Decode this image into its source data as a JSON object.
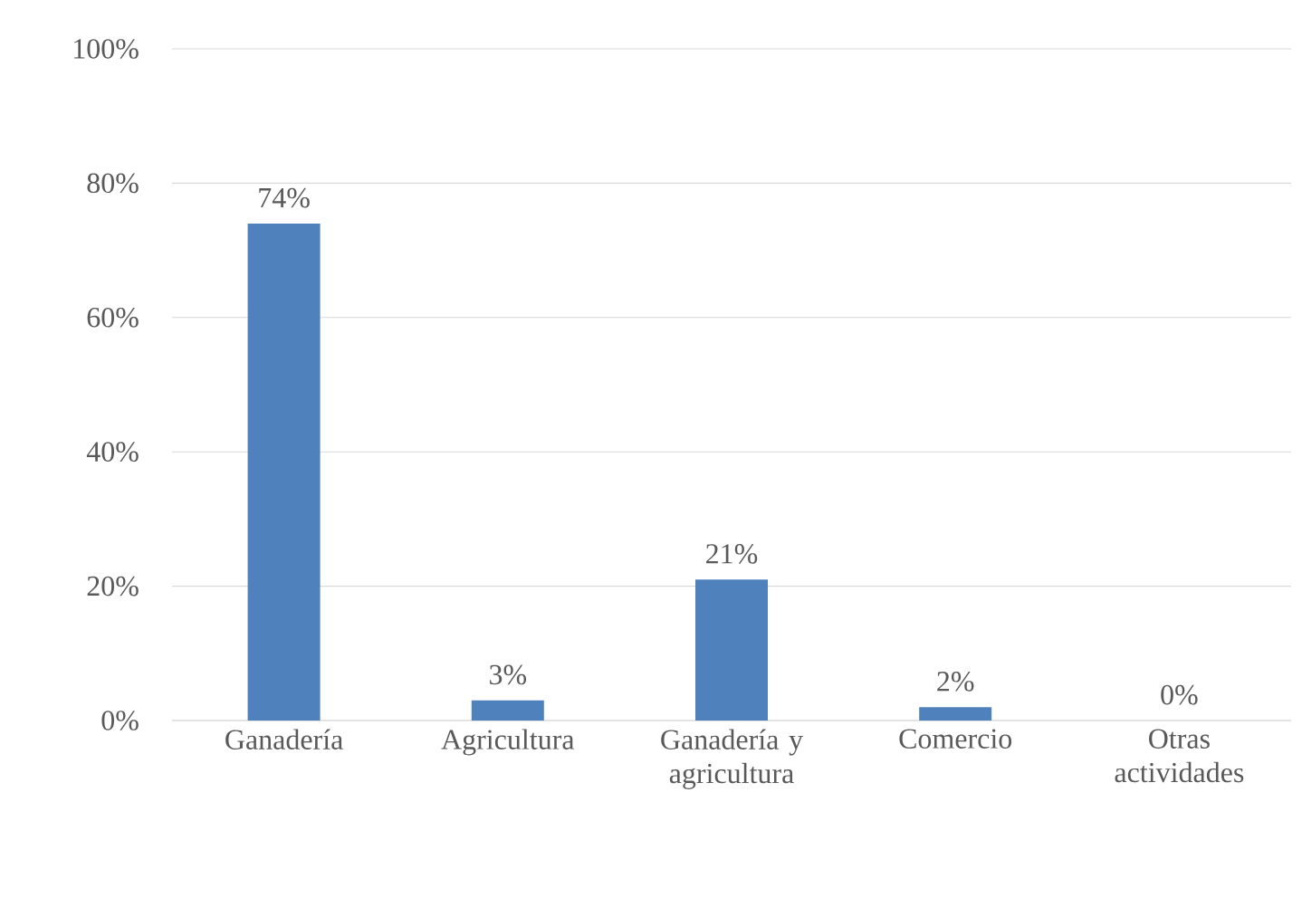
{
  "chart_data": {
    "type": "bar",
    "categories": [
      "Ganadería",
      "Agricultura",
      "Ganadería y agricultura",
      "Comercio",
      "Otras actividades"
    ],
    "values": [
      74,
      3,
      21,
      2,
      0
    ],
    "value_labels": [
      "74%",
      "3%",
      "21%",
      "2%",
      "0%"
    ],
    "color": "#4f81bd",
    "ylim": [
      0,
      100
    ],
    "yticks": [
      {
        "value": 0,
        "label": "0%"
      },
      {
        "value": 20,
        "label": "20%"
      },
      {
        "value": 40,
        "label": "40%"
      },
      {
        "value": 60,
        "label": "60%"
      },
      {
        "value": 80,
        "label": "80%"
      },
      {
        "value": 100,
        "label": "100%"
      }
    ],
    "grid": "y"
  }
}
